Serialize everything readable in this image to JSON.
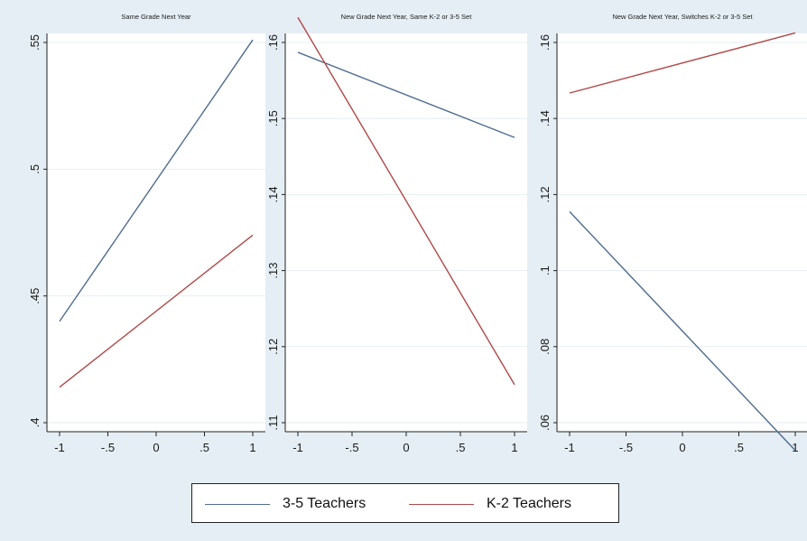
{
  "chart_data": [
    {
      "type": "line",
      "title": "Same Grade Next Year",
      "x_ticks": [
        "-1",
        "-.5",
        "0",
        ".5",
        "1"
      ],
      "xlim": [
        -1,
        1
      ],
      "ylim": [
        0.4,
        0.55
      ],
      "y_ticks": [
        {
          "value": 0.4,
          "label": ".4"
        },
        {
          "value": 0.45,
          "label": ".45"
        },
        {
          "value": 0.5,
          "label": ".5"
        },
        {
          "value": 0.55,
          "label": ".55"
        }
      ],
      "grid": true,
      "series": [
        {
          "name": "3-5 Teachers",
          "color": "#4f6d8f",
          "x": [
            -1,
            1
          ],
          "y": [
            0.44,
            0.551
          ]
        },
        {
          "name": "K-2 Teachers",
          "color": "#b04848",
          "x": [
            -1,
            1
          ],
          "y": [
            0.414,
            0.474
          ]
        }
      ]
    },
    {
      "type": "line",
      "title": "New Grade Next Year, Same K-2 or 3-5 Set",
      "x_ticks": [
        "-1",
        "-.5",
        "0",
        ".5",
        "1"
      ],
      "xlim": [
        -1,
        1
      ],
      "ylim": [
        0.11,
        0.16
      ],
      "y_ticks": [
        {
          "value": 0.11,
          "label": ".11"
        },
        {
          "value": 0.12,
          "label": ".12"
        },
        {
          "value": 0.13,
          "label": ".13"
        },
        {
          "value": 0.14,
          "label": ".14"
        },
        {
          "value": 0.15,
          "label": ".15"
        },
        {
          "value": 0.16,
          "label": ".16"
        }
      ],
      "grid": true,
      "series": [
        {
          "name": "3-5 Teachers",
          "color": "#4f6d8f",
          "x": [
            -1,
            1
          ],
          "y": [
            0.1587,
            0.1475
          ]
        },
        {
          "name": "K-2 Teachers",
          "color": "#b04848",
          "x": [
            -1,
            1
          ],
          "y": [
            0.1633,
            0.115
          ]
        }
      ]
    },
    {
      "type": "line",
      "title": "New Grade Next Year, Switches K-2 or 3-5 Set",
      "x_ticks": [
        "-1",
        "-.5",
        "0",
        ".5",
        "1"
      ],
      "xlim": [
        -1,
        1
      ],
      "ylim": [
        0.06,
        0.16
      ],
      "y_ticks": [
        {
          "value": 0.06,
          "label": ".06"
        },
        {
          "value": 0.08,
          "label": ".08"
        },
        {
          "value": 0.1,
          "label": ".1"
        },
        {
          "value": 0.12,
          "label": ".12"
        },
        {
          "value": 0.14,
          "label": ".14"
        },
        {
          "value": 0.16,
          "label": ".16"
        }
      ],
      "grid": true,
      "series": [
        {
          "name": "3-5 Teachers",
          "color": "#4f6d8f",
          "x": [
            -1,
            1
          ],
          "y": [
            0.1155,
            0.0527
          ]
        },
        {
          "name": "K-2 Teachers",
          "color": "#b04848",
          "x": [
            -1,
            1
          ],
          "y": [
            0.1467,
            0.1625
          ]
        }
      ]
    }
  ],
  "legend": {
    "placement": "bottom",
    "items": [
      {
        "label": "3-5 Teachers",
        "color": "#4f6d8f"
      },
      {
        "label": "K-2 Teachers",
        "color": "#b04848"
      }
    ]
  }
}
